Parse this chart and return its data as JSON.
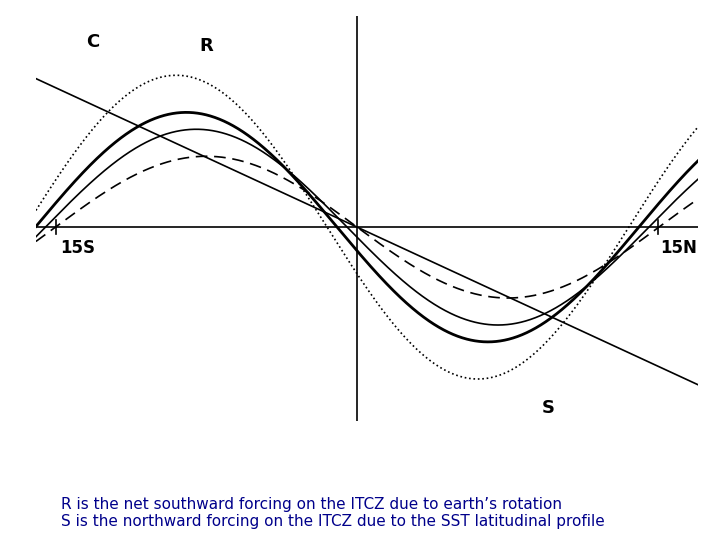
{
  "caption_line1": "R is the net southward forcing on the ITCZ due to earth’s rotation",
  "caption_line2": "S is the northward forcing on the ITCZ due to the SST latitudinal profile",
  "caption_color": "#00008B",
  "caption_fontsize": 11.0,
  "label_C": "C",
  "label_R": "R",
  "label_S": "S",
  "label_15S": "15S",
  "label_15N": "15N",
  "background_color": "#ffffff",
  "axis_color": "#000000",
  "curve_color": "#000000",
  "font_size_labels": 12,
  "amp_dotted": 0.9,
  "amp_solid_thick": 0.68,
  "amp_solid_thin": 0.58,
  "amp_dashed": 0.42,
  "peak_shift_dotted": -1.5,
  "peak_shift_solid_thick": -1.0,
  "peak_shift_solid_thin": -0.5,
  "peak_shift_dashed": 0.0,
  "freq": 0.209,
  "line_C_slope": -0.055,
  "xlim": [
    -16,
    17
  ],
  "ylim": [
    -1.15,
    1.25
  ]
}
